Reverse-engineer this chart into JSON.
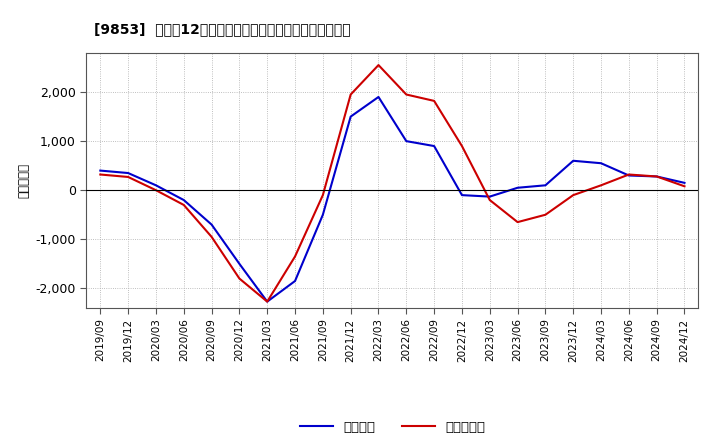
{
  "title": "[9853]  利益の12か月移動合計の対前年同期増減額の推移",
  "ylabel": "（百万円）",
  "ylim": [
    -2400,
    2800
  ],
  "yticks": [
    -2000,
    -1000,
    0,
    1000,
    2000
  ],
  "legend_labels": [
    "経常利益",
    "当期純利益"
  ],
  "line_colors": [
    "#0000cc",
    "#cc0000"
  ],
  "background_color": "#ffffff",
  "grid_color": "#aaaaaa",
  "dates": [
    "2019/09",
    "2019/12",
    "2020/03",
    "2020/06",
    "2020/09",
    "2020/12",
    "2021/03",
    "2021/06",
    "2021/09",
    "2021/12",
    "2022/03",
    "2022/06",
    "2022/09",
    "2022/12",
    "2023/03",
    "2023/06",
    "2023/09",
    "2023/12",
    "2024/03",
    "2024/06",
    "2024/09",
    "2024/12"
  ],
  "keijo_rieki": [
    400,
    350,
    100,
    -200,
    -700,
    -1500,
    -2270,
    -1850,
    -500,
    1500,
    1900,
    1000,
    900,
    -100,
    -130,
    50,
    100,
    600,
    550,
    300,
    280,
    150
  ],
  "touki_junn_rieki": [
    320,
    270,
    0,
    -300,
    -950,
    -1800,
    -2270,
    -1350,
    -100,
    1950,
    2550,
    1950,
    1820,
    900,
    -200,
    -650,
    -500,
    -100,
    100,
    320,
    280,
    80
  ]
}
